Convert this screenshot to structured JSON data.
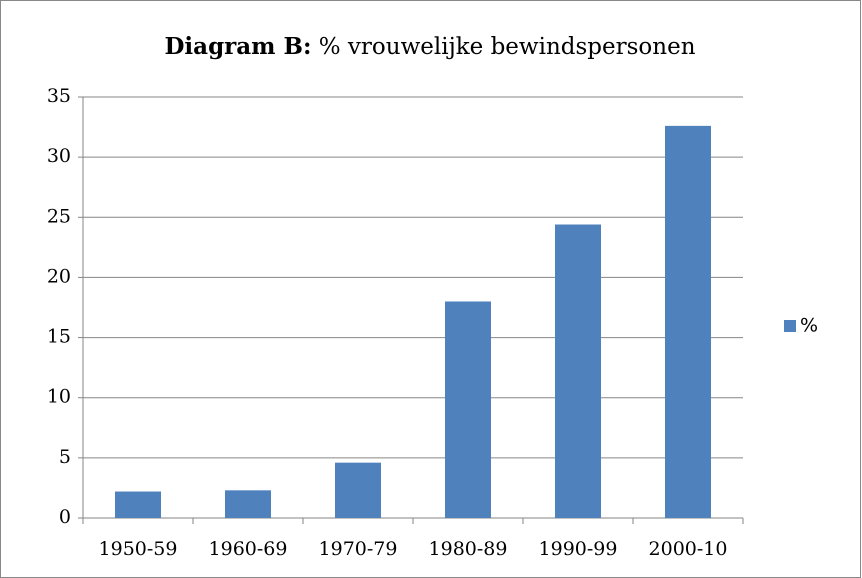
{
  "chart_data": {
    "type": "bar",
    "title": [
      "Diagram B:",
      "% vrouwelijke bewindspersonen"
    ],
    "categories": [
      "1950-59",
      "1960-69",
      "1970-79",
      "1980-89",
      "1990-99",
      "2000-10"
    ],
    "series": [
      {
        "name": "%",
        "color": "#4f81bd",
        "values": [
          2.2,
          2.3,
          4.6,
          18.0,
          24.4,
          32.6
        ]
      }
    ],
    "ylim": [
      0,
      35
    ],
    "yticks": [
      0,
      5,
      10,
      15,
      20,
      25,
      30,
      35
    ],
    "grid": true,
    "legend": "right"
  }
}
